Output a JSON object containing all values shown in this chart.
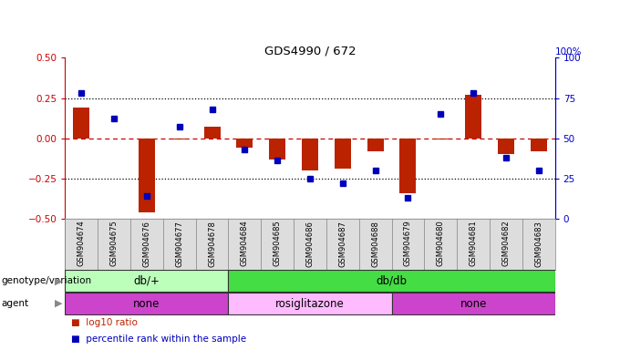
{
  "title": "GDS4990 / 672",
  "samples": [
    "GSM904674",
    "GSM904675",
    "GSM904676",
    "GSM904677",
    "GSM904678",
    "GSM904684",
    "GSM904685",
    "GSM904686",
    "GSM904687",
    "GSM904688",
    "GSM904679",
    "GSM904680",
    "GSM904681",
    "GSM904682",
    "GSM904683"
  ],
  "log10_ratio": [
    0.19,
    0.0,
    -0.46,
    -0.01,
    0.07,
    -0.06,
    -0.13,
    -0.2,
    -0.19,
    -0.08,
    -0.34,
    -0.01,
    0.27,
    -0.1,
    -0.08
  ],
  "percentile_rank": [
    78,
    62,
    14,
    57,
    68,
    43,
    36,
    25,
    22,
    30,
    13,
    65,
    78,
    38,
    30
  ],
  "ylim": [
    -0.5,
    0.5
  ],
  "yticks_left": [
    -0.5,
    -0.25,
    0.0,
    0.25,
    0.5
  ],
  "yticks_right": [
    0,
    25,
    50,
    75,
    100
  ],
  "left_axis_color": "#cc0000",
  "right_axis_color": "#0000cc",
  "bar_color": "#bb2200",
  "dot_color": "#0000bb",
  "genotype_groups": [
    {
      "label": "db/+",
      "start": 0,
      "end": 5,
      "color": "#bbffbb"
    },
    {
      "label": "db/db",
      "start": 5,
      "end": 15,
      "color": "#44dd44"
    }
  ],
  "agent_groups": [
    {
      "label": "none",
      "start": 0,
      "end": 5,
      "color": "#cc44cc"
    },
    {
      "label": "rosiglitazone",
      "start": 5,
      "end": 10,
      "color": "#ffbbff"
    },
    {
      "label": "none",
      "start": 10,
      "end": 15,
      "color": "#cc44cc"
    }
  ],
  "legend_red_label": "log10 ratio",
  "legend_blue_label": "percentile rank within the sample",
  "genotype_label": "genotype/variation",
  "agent_label": "agent",
  "background_color": "#ffffff",
  "label_bg_color": "#dddddd",
  "hline_zero_color": "#cc0000",
  "hline_quarter_color": "#000000",
  "arrow_color": "#888888"
}
